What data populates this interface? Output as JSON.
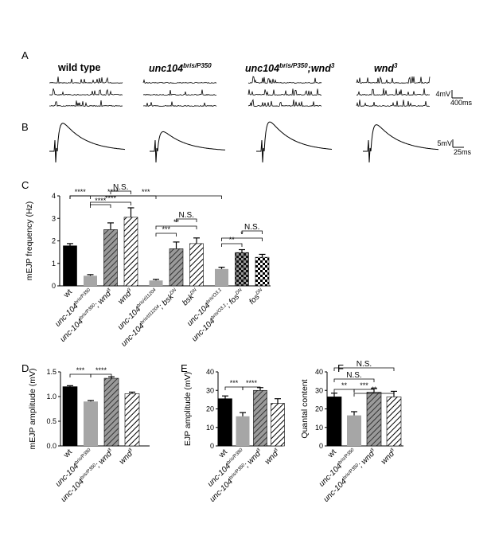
{
  "panel_labels": [
    "A",
    "B",
    "C",
    "D",
    "E",
    "F"
  ],
  "genotype_headers": [
    {
      "text": "wild type",
      "sup": ""
    },
    {
      "text": "unc104",
      "sup": "bris/P350"
    },
    {
      "text": "unc104",
      "sup": "bris/P350",
      "suffix": ";wnd",
      "suffix_sup": "3"
    },
    {
      "text": "wnd",
      "sup": "3"
    }
  ],
  "scale_bars": {
    "A": {
      "v": "4mV",
      "h": "400ms"
    },
    "B": {
      "v": "5mV",
      "h": "25ms"
    }
  },
  "colors": {
    "black": "#000000",
    "gray": "#a6a6a6",
    "dark_hatch": "#555555"
  },
  "chart_data": [
    {
      "panel": "C",
      "type": "bar",
      "ylabel": "mEJP frequency (Hz)",
      "ylim": [
        0,
        4
      ],
      "yticks": [
        "0",
        "1",
        "2",
        "3",
        "4"
      ],
      "categories": [
        {
          "base": "wt",
          "sup": "",
          "suffix": "",
          "suffix_sup": ""
        },
        {
          "base": "unc-104",
          "sup": "bris/P350",
          "suffix": "",
          "suffix_sup": ""
        },
        {
          "base": "unc-104",
          "sup": "bris/P350",
          "suffix": "; wnd",
          "suffix_sup": "3"
        },
        {
          "base": "wnd",
          "sup": "3",
          "suffix": "",
          "suffix_sup": ""
        },
        {
          "base": "unc-104",
          "sup": "bris/d11204",
          "suffix": "",
          "suffix_sup": ""
        },
        {
          "base": "unc-104",
          "sup": "bris/d11204",
          "suffix": "; bsk",
          "suffix_sup": "DN"
        },
        {
          "base": "bsk",
          "sup": "DN",
          "suffix": "",
          "suffix_sup": ""
        },
        {
          "base": "unc-104",
          "sup": "bris/O3.1",
          "suffix": "",
          "suffix_sup": ""
        },
        {
          "base": "unc-104",
          "sup": "bris/O3.1",
          "suffix": "; fos",
          "suffix_sup": "DN"
        },
        {
          "base": "fos",
          "sup": "DN",
          "suffix": "",
          "suffix_sup": ""
        }
      ],
      "values": [
        1.78,
        0.45,
        2.5,
        3.05,
        0.24,
        1.65,
        1.88,
        0.75,
        1.48,
        1.27
      ],
      "errors": [
        0.1,
        0.05,
        0.3,
        0.42,
        0.05,
        0.3,
        0.25,
        0.08,
        0.13,
        0.13
      ],
      "fills": [
        "black",
        "gray",
        "dark_hatch",
        "hatch",
        "gray",
        "dark_hatch",
        "hatch",
        "gray",
        "dark_check",
        "check"
      ],
      "comparisons": [
        {
          "a": 0,
          "b": 1,
          "label": "****"
        },
        {
          "a": 1,
          "b": 2,
          "label": "****"
        },
        {
          "a": 1,
          "b": 3,
          "label": "****"
        },
        {
          "a": 2,
          "b": 3,
          "label": "N.S."
        },
        {
          "a": 0,
          "b": 4,
          "label": "****"
        },
        {
          "a": 0,
          "b": 7,
          "label": "***"
        },
        {
          "a": 4,
          "b": 5,
          "label": "***"
        },
        {
          "a": 4,
          "b": 6,
          "label": "**"
        },
        {
          "a": 5,
          "b": 6,
          "label": "N.S."
        },
        {
          "a": 7,
          "b": 8,
          "label": "**"
        },
        {
          "a": 7,
          "b": 9,
          "label": "*"
        },
        {
          "a": 8,
          "b": 9,
          "label": "N.S."
        }
      ]
    },
    {
      "panel": "D",
      "type": "bar",
      "ylabel": "mEJP amplitude (mV)",
      "ylim": [
        0,
        1.5
      ],
      "yticks": [
        "0.0",
        "0.5",
        "1.0",
        "1.5"
      ],
      "categories": [
        {
          "base": "wt",
          "sup": "",
          "suffix": "",
          "suffix_sup": ""
        },
        {
          "base": "unc-104",
          "sup": "bris/P350",
          "suffix": "",
          "suffix_sup": ""
        },
        {
          "base": "unc-104",
          "sup": "bris/P350",
          "suffix": "; wnd",
          "suffix_sup": "3"
        },
        {
          "base": "wnd",
          "sup": "3",
          "suffix": "",
          "suffix_sup": ""
        }
      ],
      "values": [
        1.2,
        0.9,
        1.37,
        1.06
      ],
      "errors": [
        0.02,
        0.02,
        0.03,
        0.03
      ],
      "fills": [
        "black",
        "gray",
        "dark_hatch",
        "hatch"
      ],
      "comparisons": [
        {
          "a": 0,
          "b": 1,
          "label": "***"
        },
        {
          "a": 1,
          "b": 2,
          "label": "****"
        }
      ]
    },
    {
      "panel": "E",
      "type": "bar",
      "ylabel": "EJP amplitude (mV)",
      "ylim": [
        0,
        40
      ],
      "yticks": [
        "0",
        "10",
        "20",
        "30",
        "40"
      ],
      "categories": [
        {
          "base": "wt",
          "sup": "",
          "suffix": "",
          "suffix_sup": ""
        },
        {
          "base": "unc-104",
          "sup": "bris/P350",
          "suffix": "",
          "suffix_sup": ""
        },
        {
          "base": "unc-104",
          "sup": "bris/P350",
          "suffix": "; wnd",
          "suffix_sup": "3"
        },
        {
          "base": "wnd",
          "sup": "3",
          "suffix": "",
          "suffix_sup": ""
        }
      ],
      "values": [
        25.5,
        16.0,
        30.0,
        23.0
      ],
      "errors": [
        1.5,
        2.0,
        1.5,
        2.5
      ],
      "fills": [
        "black",
        "gray",
        "dark_hatch",
        "hatch"
      ],
      "comparisons": [
        {
          "a": 0,
          "b": 1,
          "label": "***"
        },
        {
          "a": 1,
          "b": 2,
          "label": "****"
        }
      ]
    },
    {
      "panel": "F",
      "type": "bar",
      "ylabel": "Quantal content",
      "ylim": [
        0,
        40
      ],
      "yticks": [
        "0",
        "10",
        "20",
        "30",
        "40"
      ],
      "categories": [
        {
          "base": "wt",
          "sup": "",
          "suffix": "",
          "suffix_sup": ""
        },
        {
          "base": "unc-104",
          "sup": "bris/P350",
          "suffix": "",
          "suffix_sup": ""
        },
        {
          "base": "unc-104",
          "sup": "bris/P350",
          "suffix": "; wnd",
          "suffix_sup": "3"
        },
        {
          "base": "wnd",
          "sup": "3",
          "suffix": "",
          "suffix_sup": ""
        }
      ],
      "values": [
        26.5,
        16.5,
        29.0,
        26.5
      ],
      "errors": [
        2.0,
        2.0,
        2.0,
        3.0
      ],
      "fills": [
        "black",
        "gray",
        "dark_hatch",
        "hatch"
      ],
      "comparisons": [
        {
          "a": 0,
          "b": 3,
          "label": "N.S."
        },
        {
          "a": 0,
          "b": 2,
          "label": "N.S."
        },
        {
          "a": 0,
          "b": 1,
          "label": "**"
        },
        {
          "a": 1,
          "b": 2,
          "label": "***"
        },
        {
          "a": 1,
          "b": 3,
          "label": "**"
        }
      ]
    }
  ]
}
